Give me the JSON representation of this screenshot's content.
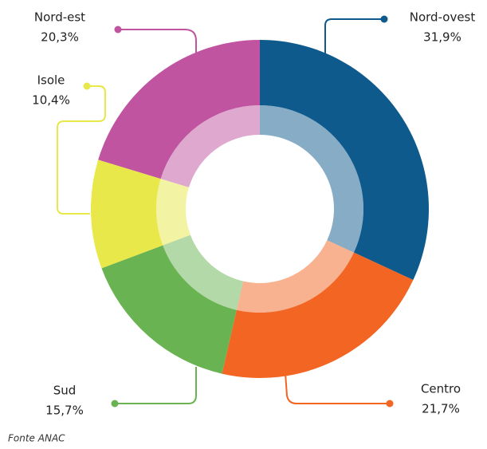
{
  "chart_data": {
    "type": "donut",
    "categories": [
      "Nord-ovest",
      "Centro",
      "Sud",
      "Isole",
      "Nord-est"
    ],
    "values": [
      31.9,
      21.7,
      15.7,
      10.4,
      20.3
    ],
    "value_labels": [
      "31,9%",
      "21,7%",
      "15,7%",
      "10,4%",
      "20,3%"
    ],
    "colors": [
      "#0f5a8c",
      "#f26522",
      "#6ab352",
      "#e8e84a",
      "#c054a0"
    ],
    "source": "Fonte ANAC"
  }
}
